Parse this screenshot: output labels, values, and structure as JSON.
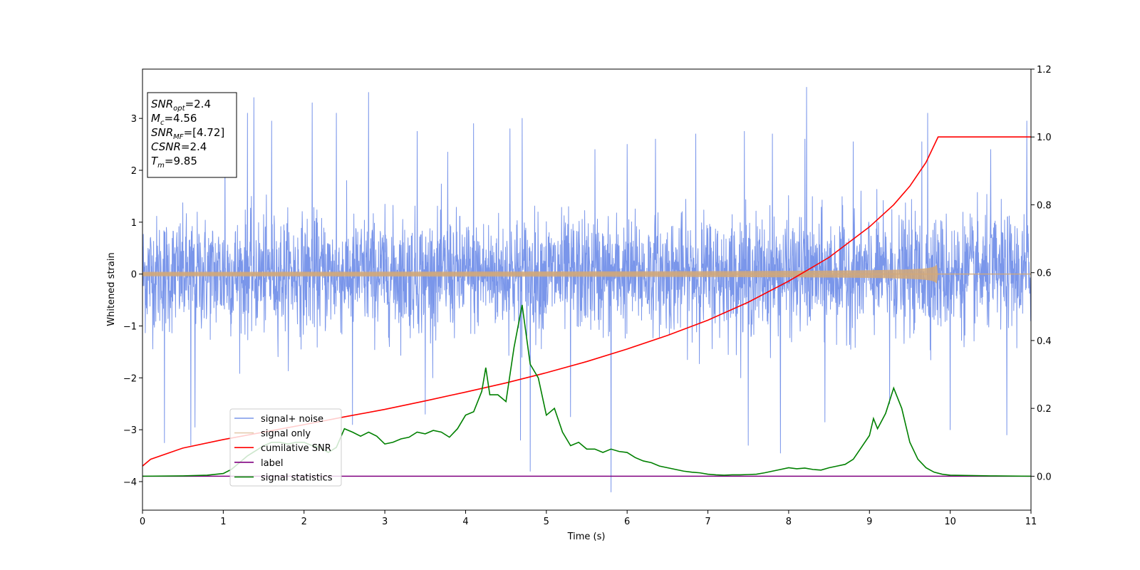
{
  "chart_data": {
    "type": "line",
    "xlabel": "Time (s)",
    "ylabel": "Whitened strain",
    "xlim": [
      0,
      11
    ],
    "ylim_left": [
      -4.55,
      3.95
    ],
    "ylim_right": [
      -0.1,
      1.2
    ],
    "x_ticks": [
      "0",
      "1",
      "2",
      "3",
      "4",
      "5",
      "6",
      "7",
      "8",
      "9",
      "10",
      "11"
    ],
    "y_ticks_left": [
      "−4",
      "−3",
      "−2",
      "−1",
      "0",
      "1",
      "2",
      "3"
    ],
    "y_ticks_right": [
      "0.0",
      "0.2",
      "0.4",
      "0.6",
      "0.8",
      "1.0",
      "1.2"
    ],
    "grid": false,
    "legend_position": "lower-left",
    "annotation_box": {
      "position": "upper-left",
      "lines": [
        {
          "label": "SNR",
          "sub": "opt",
          "value": "=2.4"
        },
        {
          "label": "M",
          "sub": "c",
          "value": "=4.56"
        },
        {
          "label": "SNR",
          "sub": "MF",
          "value": "=[4.72]"
        },
        {
          "label": "CSNR",
          "sub": "",
          "value": "=2.4"
        },
        {
          "label": "T",
          "sub": "m",
          "value": "=9.85"
        }
      ]
    },
    "series": [
      {
        "name": "signal+ noise",
        "axis": "left",
        "color": "#4169e1",
        "style": "noise",
        "x_range": [
          0,
          11
        ],
        "typical_range": [
          -1.6,
          1.5
        ],
        "spikes": [
          [
            0.27,
            -3.25
          ],
          [
            0.6,
            -3.3
          ],
          [
            0.65,
            -2.95
          ],
          [
            1.02,
            2.4
          ],
          [
            1.3,
            3.1
          ],
          [
            1.38,
            3.4
          ],
          [
            1.6,
            2.95
          ],
          [
            2.1,
            3.3
          ],
          [
            2.4,
            3.1
          ],
          [
            2.6,
            -2.9
          ],
          [
            2.8,
            3.5
          ],
          [
            3.4,
            2.75
          ],
          [
            3.5,
            -2.7
          ],
          [
            3.78,
            2.35
          ],
          [
            4.1,
            2.9
          ],
          [
            4.55,
            2.8
          ],
          [
            4.7,
            3.0
          ],
          [
            4.68,
            -3.2
          ],
          [
            4.8,
            -3.8
          ],
          [
            5.3,
            -2.75
          ],
          [
            5.6,
            2.4
          ],
          [
            5.8,
            -4.2
          ],
          [
            6.0,
            2.5
          ],
          [
            6.35,
            2.6
          ],
          [
            6.85,
            2.7
          ],
          [
            7.45,
            2.75
          ],
          [
            7.5,
            -3.3
          ],
          [
            7.8,
            2.7
          ],
          [
            7.9,
            -3.45
          ],
          [
            8.22,
            3.6
          ],
          [
            8.2,
            2.6
          ],
          [
            8.45,
            -2.85
          ],
          [
            8.8,
            2.55
          ],
          [
            9.25,
            -2.5
          ],
          [
            9.65,
            2.55
          ],
          [
            9.72,
            3.1
          ],
          [
            10.0,
            -3.0
          ],
          [
            10.5,
            2.4
          ],
          [
            10.7,
            -3.1
          ],
          [
            10.95,
            2.95
          ]
        ]
      },
      {
        "name": "signal only",
        "axis": "left",
        "color": "#d2a878",
        "style": "chirp",
        "t_merge": 9.85,
        "amplitude_at_merge": 0.3
      },
      {
        "name": "cumilative SNR",
        "axis": "right",
        "color": "#ff0000",
        "x": [
          0,
          0.1,
          0.5,
          1.0,
          1.5,
          2.0,
          2.5,
          3.0,
          3.5,
          4.0,
          4.5,
          5.0,
          5.5,
          6.0,
          6.5,
          7.0,
          7.5,
          8.0,
          8.5,
          9.0,
          9.3,
          9.5,
          9.7,
          9.8,
          9.85,
          11
        ],
        "y": [
          0.03,
          0.05,
          0.083,
          0.108,
          0.13,
          0.152,
          0.175,
          0.197,
          0.222,
          0.248,
          0.275,
          0.305,
          0.338,
          0.375,
          0.415,
          0.46,
          0.513,
          0.575,
          0.645,
          0.735,
          0.8,
          0.855,
          0.925,
          0.975,
          1.0,
          1.0
        ]
      },
      {
        "name": "label",
        "axis": "right",
        "color": "#800080",
        "x": [
          0,
          11
        ],
        "y": [
          0,
          0
        ]
      },
      {
        "name": "signal statistics",
        "axis": "right",
        "color": "#008000",
        "x": [
          0,
          0.5,
          0.8,
          1.0,
          1.1,
          1.2,
          1.3,
          1.4,
          1.5,
          1.6,
          1.7,
          1.8,
          1.9,
          2.0,
          2.1,
          2.2,
          2.3,
          2.4,
          2.5,
          2.6,
          2.7,
          2.8,
          2.9,
          3.0,
          3.1,
          3.2,
          3.3,
          3.4,
          3.5,
          3.6,
          3.7,
          3.8,
          3.9,
          4.0,
          4.1,
          4.2,
          4.25,
          4.3,
          4.4,
          4.5,
          4.6,
          4.7,
          4.8,
          4.9,
          5.0,
          5.1,
          5.2,
          5.3,
          5.4,
          5.5,
          5.6,
          5.7,
          5.8,
          5.9,
          6.0,
          6.1,
          6.2,
          6.3,
          6.4,
          6.5,
          6.6,
          6.7,
          6.8,
          6.9,
          7.0,
          7.1,
          7.2,
          7.3,
          7.4,
          7.5,
          7.6,
          7.7,
          7.8,
          7.9,
          8.0,
          8.1,
          8.2,
          8.3,
          8.4,
          8.5,
          8.6,
          8.7,
          8.8,
          8.9,
          9.0,
          9.05,
          9.1,
          9.2,
          9.3,
          9.4,
          9.5,
          9.6,
          9.7,
          9.8,
          9.9,
          10.0,
          10.5,
          11.0
        ],
        "y": [
          0.0,
          0.001,
          0.003,
          0.008,
          0.02,
          0.04,
          0.06,
          0.075,
          0.09,
          0.1,
          0.1,
          0.095,
          0.1,
          0.1,
          0.09,
          0.085,
          0.07,
          0.085,
          0.14,
          0.13,
          0.118,
          0.13,
          0.118,
          0.095,
          0.1,
          0.11,
          0.115,
          0.13,
          0.125,
          0.135,
          0.13,
          0.115,
          0.14,
          0.18,
          0.19,
          0.25,
          0.32,
          0.24,
          0.24,
          0.22,
          0.38,
          0.505,
          0.33,
          0.29,
          0.18,
          0.2,
          0.13,
          0.09,
          0.1,
          0.08,
          0.08,
          0.07,
          0.08,
          0.073,
          0.07,
          0.055,
          0.045,
          0.04,
          0.03,
          0.025,
          0.02,
          0.015,
          0.012,
          0.01,
          0.006,
          0.004,
          0.003,
          0.004,
          0.004,
          0.005,
          0.006,
          0.01,
          0.015,
          0.02,
          0.025,
          0.022,
          0.024,
          0.02,
          0.018,
          0.025,
          0.03,
          0.035,
          0.05,
          0.085,
          0.12,
          0.17,
          0.14,
          0.185,
          0.26,
          0.2,
          0.1,
          0.05,
          0.025,
          0.012,
          0.006,
          0.003,
          0.001,
          0.0
        ]
      }
    ]
  }
}
